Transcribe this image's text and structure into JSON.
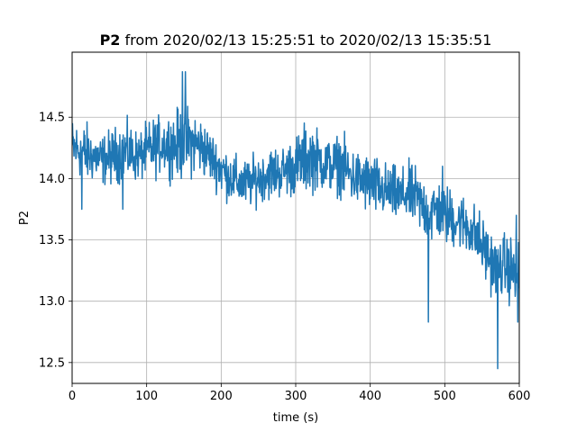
{
  "chart_data": {
    "type": "line",
    "title_bold": "P2",
    "title_rest": " from 2020/02/13 15:25:51 to 2020/02/13 15:35:51",
    "xlabel": "time (s)",
    "ylabel": "P2",
    "xlim": [
      0,
      600
    ],
    "ylim": [
      12.33,
      15.03
    ],
    "xticks": [
      0,
      100,
      200,
      300,
      400,
      500,
      600
    ],
    "xtick_labels": [
      "0",
      "100",
      "200",
      "300",
      "400",
      "500",
      "600"
    ],
    "yticks": [
      12.5,
      13.0,
      13.5,
      14.0,
      14.5
    ],
    "ytick_labels": [
      "12.5",
      "13.0",
      "13.5",
      "14.0",
      "14.5"
    ],
    "grid": true,
    "line_color": "#1f77b4",
    "series": [
      {
        "x": [
          0,
          10,
          20,
          30,
          40,
          50,
          60,
          70,
          80,
          90,
          100,
          110,
          120,
          130,
          140,
          150,
          160,
          170,
          180,
          190,
          200,
          210,
          220,
          230,
          240,
          250,
          260,
          270,
          280,
          290,
          300,
          310,
          320,
          330,
          340,
          350,
          360,
          370,
          380,
          390,
          400,
          410,
          420,
          430,
          440,
          450,
          460,
          470,
          480,
          490,
          500,
          510,
          520,
          530,
          540,
          550,
          560,
          570,
          580,
          590,
          600
        ],
        "mean": [
          14.25,
          14.23,
          14.2,
          14.18,
          14.15,
          14.17,
          14.2,
          14.22,
          14.2,
          14.18,
          14.22,
          14.25,
          14.28,
          14.28,
          14.27,
          14.3,
          14.3,
          14.27,
          14.22,
          14.15,
          14.08,
          14.02,
          13.98,
          13.95,
          13.97,
          14.0,
          14.03,
          14.05,
          14.05,
          14.08,
          14.1,
          14.15,
          14.18,
          14.15,
          14.12,
          14.1,
          14.12,
          14.05,
          14.0,
          13.98,
          13.95,
          13.92,
          13.9,
          13.88,
          13.85,
          13.88,
          13.85,
          13.78,
          13.72,
          13.75,
          13.7,
          13.68,
          13.65,
          13.62,
          13.55,
          13.45,
          13.35,
          13.25,
          13.3,
          13.25,
          13.2
        ],
        "spread": [
          0.22,
          0.2,
          0.22,
          0.18,
          0.18,
          0.2,
          0.2,
          0.22,
          0.2,
          0.18,
          0.2,
          0.22,
          0.2,
          0.22,
          0.25,
          0.27,
          0.25,
          0.22,
          0.2,
          0.18,
          0.2,
          0.18,
          0.18,
          0.18,
          0.18,
          0.18,
          0.18,
          0.2,
          0.18,
          0.2,
          0.22,
          0.25,
          0.25,
          0.22,
          0.2,
          0.2,
          0.22,
          0.22,
          0.2,
          0.22,
          0.22,
          0.22,
          0.2,
          0.2,
          0.2,
          0.22,
          0.22,
          0.22,
          0.25,
          0.22,
          0.22,
          0.22,
          0.2,
          0.22,
          0.22,
          0.22,
          0.22,
          0.22,
          0.22,
          0.25,
          0.25
        ]
      }
    ],
    "extremes": [
      {
        "x": 148,
        "y": 14.87
      },
      {
        "x": 152,
        "y": 14.87
      },
      {
        "x": 13,
        "y": 13.75
      },
      {
        "x": 68,
        "y": 13.75
      },
      {
        "x": 478,
        "y": 12.83
      },
      {
        "x": 497,
        "y": 14.1
      },
      {
        "x": 571,
        "y": 12.45
      },
      {
        "x": 598,
        "y": 12.83
      },
      {
        "x": 596,
        "y": 13.7
      }
    ]
  }
}
